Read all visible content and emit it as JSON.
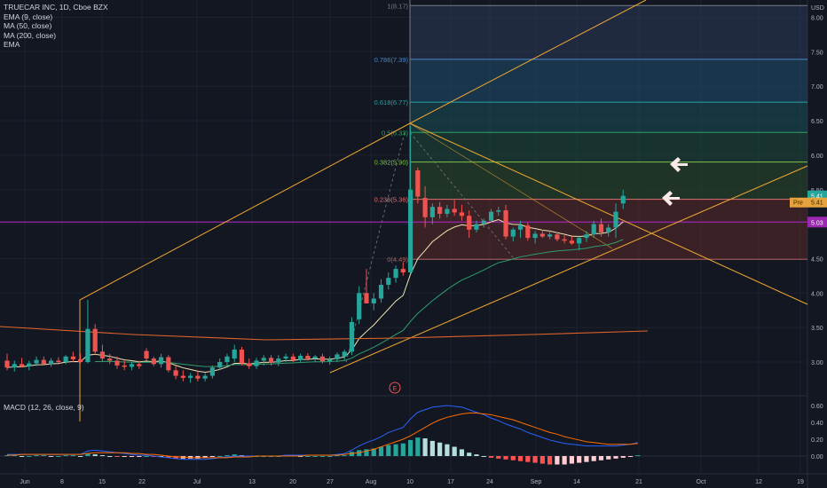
{
  "legend": {
    "symbol": "TRUECAR INC, 1D, Cboe BZX",
    "lines": [
      "EMA (9, close)",
      "MA (50, close)",
      "MA (200, close)",
      "EMA"
    ]
  },
  "macd_legend": "MACD (12, 26, close, 9)",
  "axis": {
    "currency": "USD",
    "price_ticks": [
      "8.00",
      "7.50",
      "7.00",
      "6.50",
      "6.00",
      "5.50",
      "4.50",
      "4.00",
      "3.50",
      "3.00"
    ],
    "macd_ticks": [
      "0.60",
      "0.40",
      "0.20",
      "0.00"
    ],
    "date_ticks": [
      "Jun",
      "8",
      "15",
      "22",
      "Jul",
      "13",
      "20",
      "27",
      "Aug",
      "10",
      "17",
      "24",
      "Sep",
      "14",
      "21",
      "Oct",
      "12",
      "19"
    ]
  },
  "badges": {
    "last_price": "5.41",
    "prev_close_label": "Pre",
    "prev_close": "5.41",
    "line_price": "5.03"
  },
  "fib_levels": [
    {
      "label": "1(8.17)",
      "price": 8.17
    },
    {
      "label": "0.786(7.39)",
      "price": 7.39
    },
    {
      "label": "0.618(6.77)",
      "price": 6.77
    },
    {
      "label": "0.5(6.33)",
      "price": 6.33
    },
    {
      "label": "0.382(5.90)",
      "price": 5.9
    },
    {
      "label": "0.236(5.36)",
      "price": 5.36
    },
    {
      "label": "0(4.49)",
      "price": 4.49
    }
  ],
  "earnings_marker": "E",
  "colors": {
    "up": "#26a69a",
    "down": "#ef5350",
    "ema9": "#f0e6b4",
    "ma50": "#2e9e6c",
    "ma200": "#e0632b",
    "trendline": "#f0a830",
    "purple_line": "#9c27b0",
    "macd_line": "#2962ff",
    "signal_line": "#ff6d00"
  },
  "chart_data": {
    "type": "candlestick",
    "x_labels": [
      "Jun",
      "8",
      "15",
      "22",
      "Jul",
      "13",
      "20",
      "27",
      "Aug",
      "10",
      "17",
      "24",
      "Sep",
      "14",
      "21",
      "Oct",
      "12",
      "19"
    ],
    "y_range": [
      2.6,
      8.25
    ],
    "candles": [
      {
        "o": 3.02,
        "h": 3.12,
        "l": 2.88,
        "c": 2.92
      },
      {
        "o": 2.92,
        "h": 3.02,
        "l": 2.86,
        "c": 2.97
      },
      {
        "o": 2.97,
        "h": 3.06,
        "l": 2.92,
        "c": 2.94
      },
      {
        "o": 2.94,
        "h": 3.02,
        "l": 2.88,
        "c": 2.98
      },
      {
        "o": 2.98,
        "h": 3.08,
        "l": 2.94,
        "c": 3.03
      },
      {
        "o": 3.03,
        "h": 3.08,
        "l": 2.95,
        "c": 2.97
      },
      {
        "o": 2.97,
        "h": 3.06,
        "l": 2.93,
        "c": 3.02
      },
      {
        "o": 3.02,
        "h": 3.07,
        "l": 2.96,
        "c": 3.0
      },
      {
        "o": 3.0,
        "h": 3.1,
        "l": 2.97,
        "c": 3.08
      },
      {
        "o": 3.08,
        "h": 3.15,
        "l": 3.0,
        "c": 3.04
      },
      {
        "o": 3.04,
        "h": 3.12,
        "l": 2.98,
        "c": 3.0
      },
      {
        "o": 3.0,
        "h": 3.9,
        "l": 2.98,
        "c": 3.48
      },
      {
        "o": 3.48,
        "h": 3.55,
        "l": 3.1,
        "c": 3.15
      },
      {
        "o": 3.15,
        "h": 3.25,
        "l": 3.0,
        "c": 3.05
      },
      {
        "o": 3.05,
        "h": 3.12,
        "l": 2.97,
        "c": 3.02
      },
      {
        "o": 3.02,
        "h": 3.08,
        "l": 2.9,
        "c": 2.95
      },
      {
        "o": 2.95,
        "h": 3.02,
        "l": 2.88,
        "c": 2.93
      },
      {
        "o": 2.93,
        "h": 3.0,
        "l": 2.88,
        "c": 2.97
      },
      {
        "o": 2.97,
        "h": 3.02,
        "l": 2.9,
        "c": 2.94
      },
      {
        "o": 3.16,
        "h": 3.2,
        "l": 3.02,
        "c": 3.05
      },
      {
        "o": 3.05,
        "h": 3.08,
        "l": 2.94,
        "c": 2.97
      },
      {
        "o": 2.97,
        "h": 3.12,
        "l": 2.92,
        "c": 3.07
      },
      {
        "o": 3.07,
        "h": 3.1,
        "l": 2.85,
        "c": 2.88
      },
      {
        "o": 2.88,
        "h": 2.95,
        "l": 2.75,
        "c": 2.8
      },
      {
        "o": 2.8,
        "h": 2.88,
        "l": 2.72,
        "c": 2.77
      },
      {
        "o": 2.77,
        "h": 2.84,
        "l": 2.7,
        "c": 2.8
      },
      {
        "o": 2.8,
        "h": 2.88,
        "l": 2.72,
        "c": 2.76
      },
      {
        "o": 2.76,
        "h": 2.84,
        "l": 2.72,
        "c": 2.8
      },
      {
        "o": 2.8,
        "h": 2.95,
        "l": 2.76,
        "c": 2.92
      },
      {
        "o": 2.92,
        "h": 3.05,
        "l": 2.88,
        "c": 3.0
      },
      {
        "o": 3.0,
        "h": 3.12,
        "l": 2.95,
        "c": 3.08
      },
      {
        "o": 3.05,
        "h": 3.25,
        "l": 3.0,
        "c": 3.18
      },
      {
        "o": 3.18,
        "h": 3.22,
        "l": 2.95,
        "c": 2.98
      },
      {
        "o": 2.98,
        "h": 3.05,
        "l": 2.9,
        "c": 2.94
      },
      {
        "o": 2.94,
        "h": 3.06,
        "l": 2.9,
        "c": 3.02
      },
      {
        "o": 3.02,
        "h": 3.1,
        "l": 2.95,
        "c": 3.06
      },
      {
        "o": 3.06,
        "h": 3.1,
        "l": 2.95,
        "c": 2.99
      },
      {
        "o": 2.99,
        "h": 3.1,
        "l": 2.94,
        "c": 3.05
      },
      {
        "o": 3.05,
        "h": 3.12,
        "l": 3.0,
        "c": 3.08
      },
      {
        "o": 3.08,
        "h": 3.12,
        "l": 3.0,
        "c": 3.03
      },
      {
        "o": 3.03,
        "h": 3.12,
        "l": 3.0,
        "c": 3.09
      },
      {
        "o": 3.09,
        "h": 3.13,
        "l": 3.02,
        "c": 3.05
      },
      {
        "o": 3.05,
        "h": 3.1,
        "l": 3.0,
        "c": 3.08
      },
      {
        "o": 3.08,
        "h": 3.12,
        "l": 2.98,
        "c": 3.01
      },
      {
        "o": 3.01,
        "h": 3.08,
        "l": 2.96,
        "c": 3.04
      },
      {
        "o": 3.04,
        "h": 3.14,
        "l": 3.0,
        "c": 3.11
      },
      {
        "o": 3.08,
        "h": 3.18,
        "l": 3.03,
        "c": 3.15
      },
      {
        "o": 3.15,
        "h": 3.65,
        "l": 3.1,
        "c": 3.58
      },
      {
        "o": 3.62,
        "h": 4.1,
        "l": 3.55,
        "c": 4.0
      },
      {
        "o": 4.0,
        "h": 4.35,
        "l": 3.9,
        "c": 3.85
      },
      {
        "o": 3.85,
        "h": 4.0,
        "l": 3.75,
        "c": 3.92
      },
      {
        "o": 3.92,
        "h": 4.2,
        "l": 3.86,
        "c": 4.12
      },
      {
        "o": 4.12,
        "h": 4.3,
        "l": 4.05,
        "c": 4.22
      },
      {
        "o": 4.22,
        "h": 4.4,
        "l": 4.15,
        "c": 4.35
      },
      {
        "o": 4.35,
        "h": 4.45,
        "l": 4.25,
        "c": 4.3
      },
      {
        "o": 4.3,
        "h": 6.42,
        "l": 4.28,
        "c": 5.5
      },
      {
        "o": 5.78,
        "h": 5.82,
        "l": 5.3,
        "c": 5.4
      },
      {
        "o": 5.38,
        "h": 5.55,
        "l": 4.95,
        "c": 5.1
      },
      {
        "o": 5.1,
        "h": 5.3,
        "l": 5.0,
        "c": 5.25
      },
      {
        "o": 5.25,
        "h": 5.32,
        "l": 5.08,
        "c": 5.15
      },
      {
        "o": 5.15,
        "h": 5.28,
        "l": 5.1,
        "c": 5.22
      },
      {
        "o": 5.22,
        "h": 5.35,
        "l": 5.12,
        "c": 5.17
      },
      {
        "o": 5.17,
        "h": 5.28,
        "l": 5.05,
        "c": 5.12
      },
      {
        "o": 5.12,
        "h": 5.2,
        "l": 4.8,
        "c": 4.92
      },
      {
        "o": 4.92,
        "h": 5.05,
        "l": 4.88,
        "c": 5.0
      },
      {
        "o": 5.0,
        "h": 5.08,
        "l": 4.95,
        "c": 5.05
      },
      {
        "o": 5.05,
        "h": 5.22,
        "l": 5.02,
        "c": 5.18
      },
      {
        "o": 5.18,
        "h": 5.25,
        "l": 5.12,
        "c": 5.2
      },
      {
        "o": 5.2,
        "h": 5.28,
        "l": 4.78,
        "c": 4.82
      },
      {
        "o": 4.82,
        "h": 4.95,
        "l": 4.75,
        "c": 4.92
      },
      {
        "o": 4.92,
        "h": 5.05,
        "l": 4.8,
        "c": 4.98
      },
      {
        "o": 4.98,
        "h": 5.02,
        "l": 4.76,
        "c": 4.8
      },
      {
        "o": 4.8,
        "h": 4.9,
        "l": 4.72,
        "c": 4.86
      },
      {
        "o": 4.86,
        "h": 4.92,
        "l": 4.8,
        "c": 4.82
      },
      {
        "o": 4.82,
        "h": 4.9,
        "l": 4.78,
        "c": 4.85
      },
      {
        "o": 4.85,
        "h": 4.88,
        "l": 4.75,
        "c": 4.78
      },
      {
        "o": 4.78,
        "h": 4.84,
        "l": 4.72,
        "c": 4.76
      },
      {
        "o": 4.76,
        "h": 4.82,
        "l": 4.7,
        "c": 4.72
      },
      {
        "o": 4.72,
        "h": 4.82,
        "l": 4.62,
        "c": 4.8
      },
      {
        "o": 4.8,
        "h": 4.9,
        "l": 4.74,
        "c": 4.85
      },
      {
        "o": 4.85,
        "h": 5.05,
        "l": 4.8,
        "c": 5.0
      },
      {
        "o": 5.0,
        "h": 5.08,
        "l": 4.82,
        "c": 4.88
      },
      {
        "o": 4.88,
        "h": 5.0,
        "l": 4.82,
        "c": 4.95
      },
      {
        "o": 4.95,
        "h": 5.3,
        "l": 4.8,
        "c": 5.18
      },
      {
        "o": 5.3,
        "h": 5.5,
        "l": 5.22,
        "c": 5.41
      }
    ]
  },
  "macd_data": {
    "histogram": [
      0.01,
      0.01,
      0.0,
      0.0,
      0.01,
      0.01,
      0.0,
      0.0,
      0.01,
      0.01,
      0.0,
      0.03,
      0.02,
      0.01,
      0.0,
      -0.01,
      -0.01,
      -0.01,
      -0.01,
      0.0,
      -0.01,
      -0.01,
      -0.02,
      -0.03,
      -0.03,
      -0.03,
      -0.03,
      -0.02,
      -0.01,
      0.0,
      0.01,
      0.02,
      0.01,
      0.0,
      0.0,
      0.0,
      0.0,
      0.0,
      0.01,
      0.01,
      0.0,
      0.0,
      0.0,
      0.0,
      0.0,
      0.01,
      0.01,
      0.05,
      0.07,
      0.08,
      0.09,
      0.11,
      0.13,
      0.14,
      0.15,
      0.19,
      0.22,
      0.21,
      0.18,
      0.16,
      0.14,
      0.11,
      0.08,
      0.04,
      0.02,
      0.0,
      -0.02,
      -0.03,
      -0.04,
      -0.05,
      -0.06,
      -0.07,
      -0.08,
      -0.09,
      -0.1,
      -0.1,
      -0.1,
      -0.09,
      -0.08,
      -0.07,
      -0.06,
      -0.05,
      -0.04,
      -0.03,
      -0.02,
      -0.01,
      0.01
    ],
    "macd_line": [
      0.02,
      0.02,
      0.02,
      0.02,
      0.02,
      0.02,
      0.02,
      0.02,
      0.02,
      0.02,
      0.02,
      0.06,
      0.07,
      0.06,
      0.05,
      0.04,
      0.03,
      0.02,
      0.01,
      0.01,
      0.0,
      -0.01,
      -0.02,
      -0.03,
      -0.04,
      -0.04,
      -0.04,
      -0.04,
      -0.03,
      -0.02,
      -0.01,
      0.0,
      0.0,
      0.0,
      0.0,
      0.0,
      0.0,
      0.0,
      0.01,
      0.01,
      0.01,
      0.01,
      0.01,
      0.01,
      0.01,
      0.02,
      0.03,
      0.07,
      0.12,
      0.16,
      0.19,
      0.23,
      0.28,
      0.31,
      0.34,
      0.44,
      0.52,
      0.55,
      0.58,
      0.59,
      0.6,
      0.59,
      0.58,
      0.55,
      0.52,
      0.49,
      0.45,
      0.42,
      0.38,
      0.35,
      0.32,
      0.28,
      0.25,
      0.22,
      0.19,
      0.17,
      0.15,
      0.14,
      0.13,
      0.12,
      0.12,
      0.12,
      0.12,
      0.12,
      0.13,
      0.14,
      0.16
    ],
    "signal_line": [
      0.01,
      0.01,
      0.02,
      0.02,
      0.02,
      0.02,
      0.02,
      0.02,
      0.02,
      0.02,
      0.02,
      0.03,
      0.04,
      0.04,
      0.04,
      0.04,
      0.04,
      0.03,
      0.03,
      0.02,
      0.02,
      0.01,
      0.0,
      -0.01,
      -0.01,
      -0.02,
      -0.02,
      -0.02,
      -0.02,
      -0.02,
      -0.02,
      -0.01,
      -0.01,
      -0.01,
      0.0,
      0.0,
      0.0,
      0.0,
      0.0,
      0.0,
      0.0,
      0.01,
      0.01,
      0.01,
      0.01,
      0.01,
      0.02,
      0.03,
      0.04,
      0.06,
      0.08,
      0.11,
      0.14,
      0.17,
      0.2,
      0.24,
      0.29,
      0.34,
      0.39,
      0.43,
      0.46,
      0.48,
      0.5,
      0.51,
      0.51,
      0.5,
      0.49,
      0.47,
      0.45,
      0.43,
      0.4,
      0.37,
      0.34,
      0.31,
      0.28,
      0.26,
      0.23,
      0.21,
      0.19,
      0.17,
      0.16,
      0.15,
      0.14,
      0.14,
      0.14,
      0.14,
      0.15
    ],
    "y_range": [
      -0.1,
      0.66
    ]
  }
}
